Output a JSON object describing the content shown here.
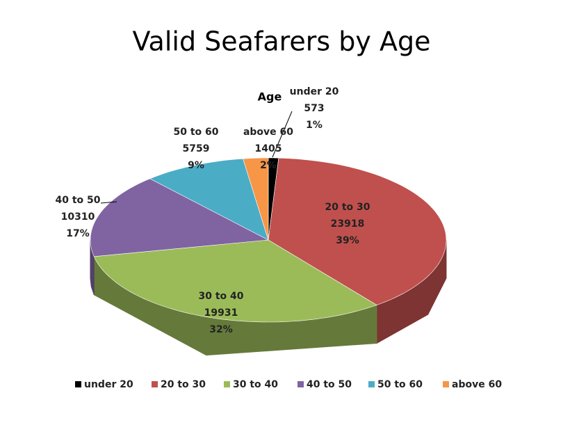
{
  "chart_data": {
    "type": "pie3d",
    "title": "Valid Seafarers by Age",
    "series_name": "Age",
    "categories": [
      "under 20",
      "20 to 30",
      "30 to 40",
      "40 to 50",
      "50 to 60",
      "above 60"
    ],
    "values": [
      573,
      23918,
      19931,
      10310,
      5759,
      1405
    ],
    "percent_labels": [
      "1%",
      "39%",
      "32%",
      "17%",
      "9%",
      "2%"
    ],
    "colors": [
      "#000000",
      "#c0504d",
      "#9bbb59",
      "#8064a2",
      "#4bacc6",
      "#f79646"
    ],
    "legend": "bottom"
  }
}
